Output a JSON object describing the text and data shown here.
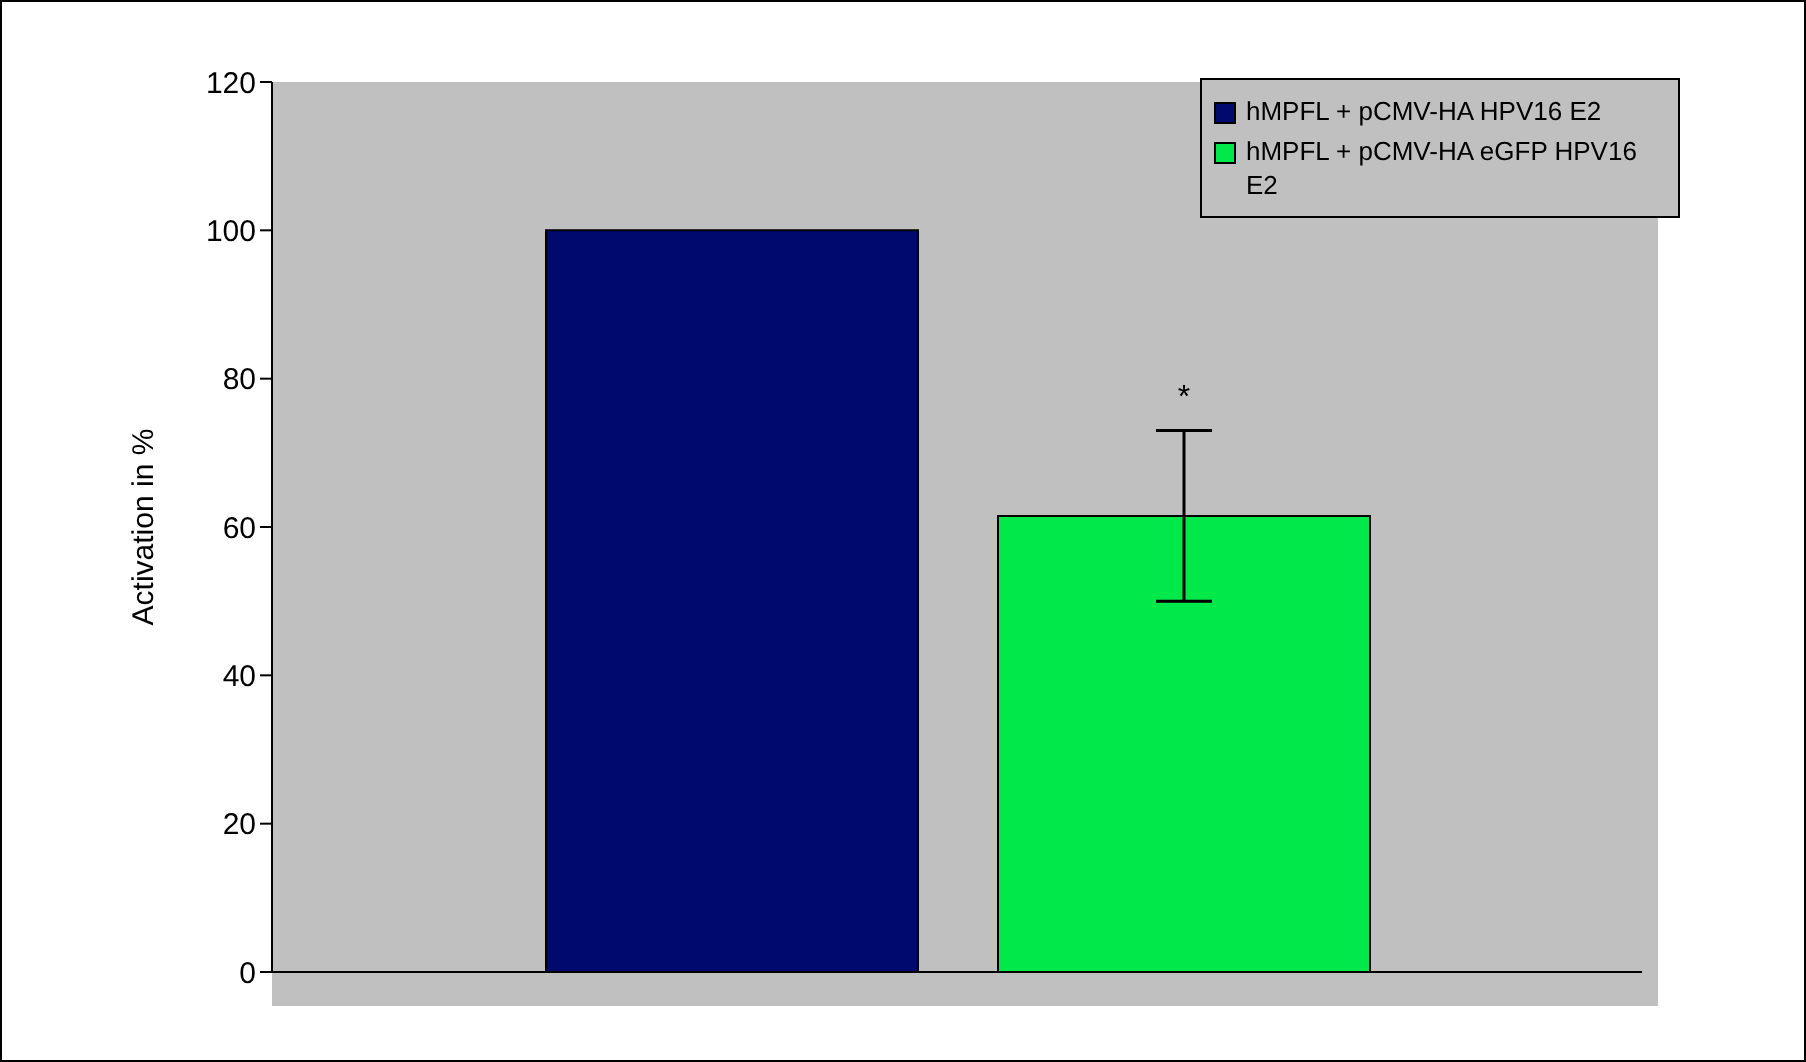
{
  "chart_data": {
    "type": "bar",
    "ylabel": "Activation in %",
    "categories": [
      null
    ],
    "series": [
      {
        "name": "hMPFL + pCMV-HA HPV16 E2",
        "color": "#000a6e",
        "values": [
          100
        ]
      },
      {
        "name": "hMPFL + pCMV-HA eGFP HPV16 E2",
        "color": "#00e84a",
        "values": [
          61.5
        ],
        "errors": [
          11.5
        ]
      }
    ],
    "ylim": [
      0,
      120
    ],
    "yticks": [
      0,
      20,
      40,
      60,
      80,
      100,
      120
    ],
    "grid": false,
    "legend": "top right",
    "annotations": [
      "*"
    ]
  }
}
